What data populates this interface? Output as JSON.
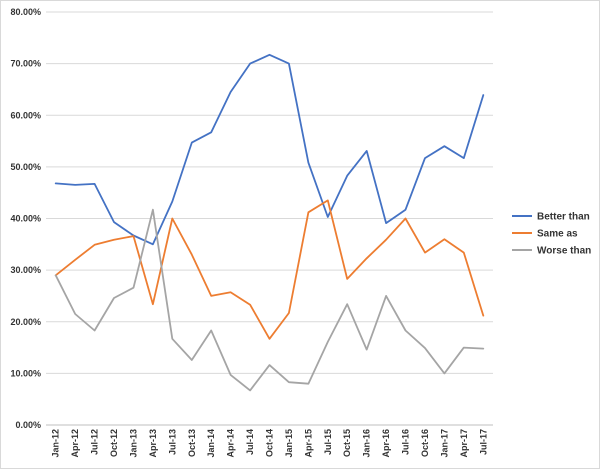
{
  "chart_data": {
    "type": "line",
    "title": "",
    "xlabel": "",
    "ylabel": "",
    "ylim": [
      0,
      80
    ],
    "y_ticks": [
      0,
      10,
      20,
      30,
      40,
      50,
      60,
      70,
      80
    ],
    "y_tick_labels": [
      "0.00%",
      "10.00%",
      "20.00%",
      "30.00%",
      "40.00%",
      "50.00%",
      "60.00%",
      "70.00%",
      "80.00%"
    ],
    "grid": "horizontal",
    "legend_position": "right",
    "categories": [
      "Jan-12",
      "Apr-12",
      "Jul-12",
      "Oct-12",
      "Jan-13",
      "Apr-13",
      "Jul-13",
      "Oct-13",
      "Jan-14",
      "Apr-14",
      "Jul-14",
      "Oct-14",
      "Jan-15",
      "Apr-15",
      "Jul-15",
      "Oct-15",
      "Jan-16",
      "Apr-16",
      "Jul-16",
      "Oct-16",
      "Jan-17",
      "Apr-17",
      "Jul-17"
    ],
    "series": [
      {
        "name": "Better than",
        "color": "#4472c4",
        "values": [
          46.8,
          46.5,
          46.7,
          39.3,
          36.7,
          35.0,
          43.3,
          54.7,
          56.7,
          64.5,
          70.0,
          71.7,
          70.0,
          50.8,
          40.3,
          48.3,
          53.1,
          39.1,
          41.7,
          51.7,
          54.0,
          51.7,
          63.9
        ]
      },
      {
        "name": "Same as",
        "color": "#ed7d31",
        "values": [
          29.0,
          32.0,
          34.9,
          35.9,
          36.6,
          23.4,
          40.0,
          33.0,
          25.0,
          25.7,
          23.3,
          16.7,
          21.7,
          41.2,
          43.5,
          28.3,
          32.3,
          35.9,
          40.0,
          33.4,
          36.0,
          33.4,
          21.2
        ]
      },
      {
        "name": "Worse than",
        "color": "#a5a5a5",
        "values": [
          29.0,
          21.5,
          18.3,
          24.6,
          26.6,
          41.7,
          16.7,
          12.6,
          18.3,
          9.7,
          6.7,
          11.6,
          8.3,
          8.0,
          16.1,
          23.4,
          14.6,
          25.0,
          18.3,
          14.9,
          10.0,
          15.0,
          14.8
        ]
      }
    ]
  }
}
